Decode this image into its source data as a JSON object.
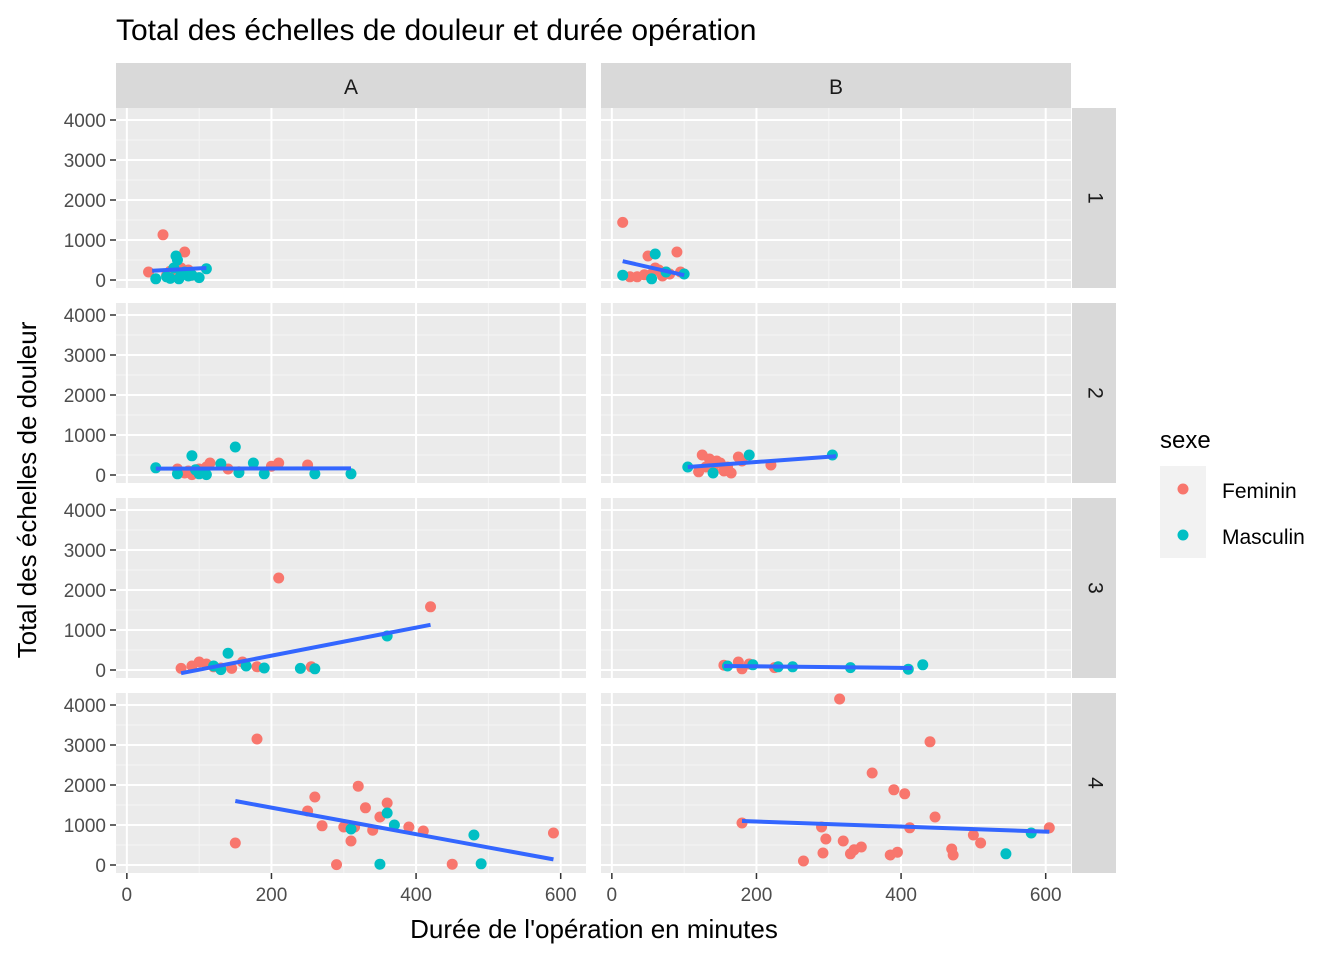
{
  "chart_data": {
    "type": "scatter",
    "title": "Total des échelles de douleur et durée opération",
    "xlabel": "Durée de l'opération en minutes",
    "ylabel": "Total des échelles de douleur",
    "xlim": [
      -15,
      635
    ],
    "ylim": [
      -200,
      4300
    ],
    "x_ticks": [
      0,
      200,
      400,
      600
    ],
    "y_ticks": [
      0,
      1000,
      2000,
      3000,
      4000
    ],
    "grid": true,
    "legend_position": "right",
    "col_facets": [
      "A",
      "B"
    ],
    "row_facets": [
      "1",
      "2",
      "3",
      "4"
    ],
    "legend": {
      "title": "sexe",
      "entries": [
        {
          "label": "Feminin",
          "color": "#F8766D"
        },
        {
          "label": "Masculin",
          "color": "#00BFC4"
        }
      ]
    },
    "fit_color": "#3366FF",
    "panels": [
      {
        "col": "A",
        "row": "1",
        "fit": [
          [
            35,
            230
          ],
          [
            110,
            300
          ]
        ],
        "Feminin": [
          [
            30,
            200
          ],
          [
            50,
            1130
          ],
          [
            55,
            120
          ],
          [
            60,
            220
          ],
          [
            65,
            100
          ],
          [
            70,
            150
          ],
          [
            75,
            300
          ],
          [
            80,
            700
          ],
          [
            85,
            250
          ],
          [
            90,
            120
          ]
        ],
        "Masculin": [
          [
            40,
            30
          ],
          [
            55,
            80
          ],
          [
            60,
            40
          ],
          [
            65,
            300
          ],
          [
            68,
            600
          ],
          [
            70,
            500
          ],
          [
            72,
            30
          ],
          [
            75,
            120
          ],
          [
            80,
            200
          ],
          [
            85,
            100
          ],
          [
            90,
            120
          ],
          [
            100,
            60
          ],
          [
            110,
            280
          ]
        ]
      },
      {
        "col": "B",
        "row": "1",
        "fit": [
          [
            15,
            470
          ],
          [
            100,
            120
          ]
        ],
        "Feminin": [
          [
            15,
            1440
          ],
          [
            25,
            80
          ],
          [
            35,
            80
          ],
          [
            45,
            130
          ],
          [
            50,
            600
          ],
          [
            55,
            150
          ],
          [
            60,
            300
          ],
          [
            65,
            250
          ],
          [
            70,
            100
          ],
          [
            75,
            200
          ],
          [
            80,
            150
          ],
          [
            90,
            700
          ],
          [
            95,
            200
          ]
        ],
        "Masculin": [
          [
            15,
            120
          ],
          [
            55,
            30
          ],
          [
            60,
            650
          ],
          [
            75,
            200
          ],
          [
            100,
            150
          ]
        ]
      },
      {
        "col": "A",
        "row": "2",
        "fit": [
          [
            40,
            160
          ],
          [
            310,
            165
          ]
        ],
        "Feminin": [
          [
            70,
            150
          ],
          [
            80,
            50
          ],
          [
            85,
            100
          ],
          [
            90,
            10
          ],
          [
            100,
            150
          ],
          [
            110,
            200
          ],
          [
            115,
            300
          ],
          [
            140,
            150
          ],
          [
            155,
            80
          ],
          [
            200,
            220
          ],
          [
            210,
            300
          ],
          [
            250,
            250
          ]
        ],
        "Masculin": [
          [
            40,
            180
          ],
          [
            70,
            30
          ],
          [
            90,
            480
          ],
          [
            95,
            130
          ],
          [
            100,
            30
          ],
          [
            110,
            10
          ],
          [
            130,
            280
          ],
          [
            150,
            700
          ],
          [
            155,
            60
          ],
          [
            175,
            300
          ],
          [
            190,
            30
          ],
          [
            260,
            30
          ],
          [
            310,
            30
          ]
        ]
      },
      {
        "col": "B",
        "row": "2",
        "fit": [
          [
            105,
            200
          ],
          [
            310,
            470
          ]
        ],
        "Feminin": [
          [
            120,
            80
          ],
          [
            125,
            500
          ],
          [
            130,
            200
          ],
          [
            135,
            400
          ],
          [
            140,
            150
          ],
          [
            145,
            350
          ],
          [
            150,
            300
          ],
          [
            155,
            100
          ],
          [
            160,
            200
          ],
          [
            165,
            50
          ],
          [
            175,
            450
          ],
          [
            180,
            350
          ],
          [
            220,
            250
          ]
        ],
        "Masculin": [
          [
            105,
            200
          ],
          [
            140,
            50
          ],
          [
            190,
            500
          ],
          [
            305,
            500
          ]
        ]
      },
      {
        "col": "A",
        "row": "3",
        "fit": [
          [
            75,
            -80
          ],
          [
            420,
            1130
          ]
        ],
        "Feminin": [
          [
            75,
            40
          ],
          [
            90,
            100
          ],
          [
            100,
            200
          ],
          [
            110,
            150
          ],
          [
            120,
            80
          ],
          [
            130,
            50
          ],
          [
            145,
            40
          ],
          [
            160,
            200
          ],
          [
            180,
            80
          ],
          [
            210,
            2300
          ],
          [
            255,
            80
          ],
          [
            420,
            1580
          ]
        ],
        "Masculin": [
          [
            120,
            100
          ],
          [
            130,
            10
          ],
          [
            140,
            420
          ],
          [
            165,
            100
          ],
          [
            190,
            50
          ],
          [
            240,
            40
          ],
          [
            260,
            30
          ],
          [
            360,
            850
          ]
        ]
      },
      {
        "col": "B",
        "row": "3",
        "fit": [
          [
            155,
            100
          ],
          [
            415,
            50
          ]
        ],
        "Feminin": [
          [
            155,
            120
          ],
          [
            175,
            200
          ],
          [
            180,
            30
          ],
          [
            190,
            150
          ],
          [
            225,
            60
          ]
        ],
        "Masculin": [
          [
            160,
            100
          ],
          [
            195,
            130
          ],
          [
            230,
            80
          ],
          [
            250,
            80
          ],
          [
            330,
            60
          ],
          [
            410,
            20
          ],
          [
            430,
            130
          ]
        ]
      },
      {
        "col": "A",
        "row": "4",
        "fit": [
          [
            150,
            1600
          ],
          [
            590,
            140
          ]
        ],
        "Feminin": [
          [
            150,
            550
          ],
          [
            180,
            3150
          ],
          [
            250,
            1350
          ],
          [
            260,
            1700
          ],
          [
            270,
            980
          ],
          [
            290,
            10
          ],
          [
            300,
            950
          ],
          [
            310,
            600
          ],
          [
            315,
            950
          ],
          [
            320,
            1970
          ],
          [
            330,
            1430
          ],
          [
            340,
            870
          ],
          [
            350,
            1200
          ],
          [
            360,
            1550
          ],
          [
            390,
            950
          ],
          [
            410,
            850
          ],
          [
            450,
            20
          ],
          [
            590,
            800
          ]
        ],
        "Masculin": [
          [
            310,
            900
          ],
          [
            350,
            20
          ],
          [
            360,
            1300
          ],
          [
            370,
            1000
          ],
          [
            480,
            750
          ],
          [
            490,
            30
          ]
        ]
      },
      {
        "col": "B",
        "row": "4",
        "fit": [
          [
            180,
            1100
          ],
          [
            605,
            830
          ]
        ],
        "Feminin": [
          [
            180,
            1050
          ],
          [
            265,
            100
          ],
          [
            290,
            950
          ],
          [
            292,
            300
          ],
          [
            296,
            650
          ],
          [
            315,
            4150
          ],
          [
            320,
            600
          ],
          [
            330,
            280
          ],
          [
            335,
            380
          ],
          [
            345,
            450
          ],
          [
            360,
            2300
          ],
          [
            385,
            250
          ],
          [
            390,
            1880
          ],
          [
            395,
            320
          ],
          [
            405,
            1780
          ],
          [
            412,
            930
          ],
          [
            440,
            3080
          ],
          [
            447,
            1200
          ],
          [
            470,
            400
          ],
          [
            472,
            250
          ],
          [
            500,
            750
          ],
          [
            510,
            550
          ],
          [
            605,
            930
          ]
        ],
        "Masculin": [
          [
            545,
            280
          ],
          [
            580,
            800
          ]
        ]
      }
    ]
  }
}
